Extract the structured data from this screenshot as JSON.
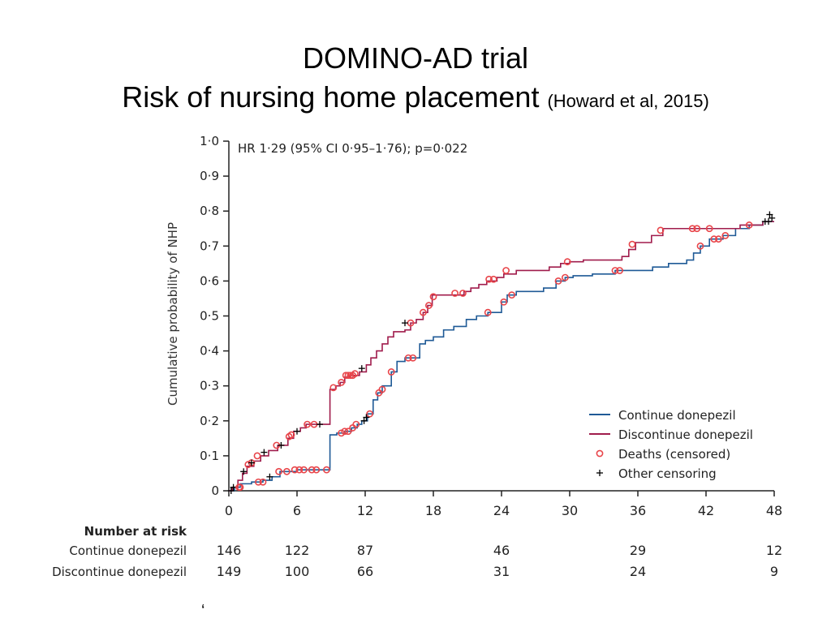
{
  "title_line1": "DOMINO-AD trial",
  "title_line2": "Risk of nursing home placement",
  "title_citation": "(Howard et al, 2015)",
  "chart_data": {
    "type": "line",
    "subtype": "kaplan-meier cumulative incidence (step)",
    "annotation": "HR 1·29 (95% CI 0·95–1·76); p=0·022",
    "ylabel": "Cumulative probability of NHP",
    "xlabel": "",
    "xlim": [
      0,
      48
    ],
    "ylim": [
      0,
      1.0
    ],
    "xticks": [
      "0",
      "6",
      "12",
      "18",
      "24",
      "30",
      "36",
      "42",
      "48"
    ],
    "xtick_values": [
      0,
      6,
      12,
      18,
      24,
      30,
      36,
      42,
      48
    ],
    "yticks": [
      "0",
      "0·1",
      "0·2",
      "0·3",
      "0·4",
      "0·5",
      "0·6",
      "0·7",
      "0·8",
      "0·9",
      "1·0"
    ],
    "ytick_values": [
      0,
      0.1,
      0.2,
      0.3,
      0.4,
      0.5,
      0.6,
      0.7,
      0.8,
      0.9,
      1.0
    ],
    "grid": false,
    "legend_position": "bottom-right",
    "legend_markers": {
      "deaths": "Deaths (censored)",
      "other": "Other censoring"
    },
    "colors": {
      "continue": "#1f5a96",
      "discontinue": "#a01c4c",
      "deaths_marker": "#e8454a",
      "other_marker": "#000000"
    },
    "series": [
      {
        "name": "Continue donepezil",
        "color_key": "continue",
        "steps": [
          [
            0,
            0
          ],
          [
            0.5,
            0.01
          ],
          [
            1.0,
            0.02
          ],
          [
            2.0,
            0.025
          ],
          [
            3.0,
            0.03
          ],
          [
            3.8,
            0.04
          ],
          [
            4.5,
            0.055
          ],
          [
            6.0,
            0.06
          ],
          [
            8.5,
            0.06
          ],
          [
            8.9,
            0.16
          ],
          [
            9.5,
            0.165
          ],
          [
            10.2,
            0.17
          ],
          [
            10.8,
            0.18
          ],
          [
            11.3,
            0.19
          ],
          [
            11.7,
            0.2
          ],
          [
            12.2,
            0.22
          ],
          [
            12.7,
            0.26
          ],
          [
            13.1,
            0.28
          ],
          [
            13.5,
            0.3
          ],
          [
            14.3,
            0.34
          ],
          [
            14.8,
            0.37
          ],
          [
            15.5,
            0.38
          ],
          [
            16.8,
            0.42
          ],
          [
            17.3,
            0.43
          ],
          [
            18.0,
            0.44
          ],
          [
            18.9,
            0.46
          ],
          [
            19.8,
            0.47
          ],
          [
            20.9,
            0.49
          ],
          [
            21.8,
            0.5
          ],
          [
            22.8,
            0.51
          ],
          [
            24.0,
            0.54
          ],
          [
            24.5,
            0.56
          ],
          [
            25.3,
            0.57
          ],
          [
            27.7,
            0.58
          ],
          [
            28.8,
            0.6
          ],
          [
            29.6,
            0.61
          ],
          [
            30.3,
            0.615
          ],
          [
            32.0,
            0.62
          ],
          [
            34.0,
            0.63
          ],
          [
            37.3,
            0.64
          ],
          [
            38.7,
            0.65
          ],
          [
            40.3,
            0.66
          ],
          [
            40.9,
            0.68
          ],
          [
            41.5,
            0.7
          ],
          [
            42.3,
            0.72
          ],
          [
            43.5,
            0.73
          ],
          [
            44.6,
            0.75
          ],
          [
            45.8,
            0.76
          ],
          [
            47.0,
            0.77
          ],
          [
            48,
            0.77
          ]
        ],
        "deaths_censored": [
          [
            1.0,
            0.01
          ],
          [
            2.6,
            0.025
          ],
          [
            3.0,
            0.025
          ],
          [
            4.4,
            0.055
          ],
          [
            5.1,
            0.055
          ],
          [
            5.8,
            0.06
          ],
          [
            6.2,
            0.06
          ],
          [
            6.6,
            0.06
          ],
          [
            7.3,
            0.06
          ],
          [
            7.7,
            0.06
          ],
          [
            8.6,
            0.06
          ],
          [
            9.9,
            0.165
          ],
          [
            10.2,
            0.17
          ],
          [
            10.5,
            0.17
          ],
          [
            10.9,
            0.18
          ],
          [
            11.2,
            0.19
          ],
          [
            12.4,
            0.22
          ],
          [
            13.2,
            0.28
          ],
          [
            13.5,
            0.29
          ],
          [
            14.3,
            0.34
          ],
          [
            15.8,
            0.38
          ],
          [
            16.2,
            0.38
          ],
          [
            22.8,
            0.51
          ],
          [
            24.2,
            0.54
          ],
          [
            24.9,
            0.56
          ],
          [
            29.0,
            0.6
          ],
          [
            29.6,
            0.61
          ],
          [
            34.0,
            0.63
          ],
          [
            34.4,
            0.63
          ],
          [
            41.5,
            0.7
          ],
          [
            42.7,
            0.72
          ],
          [
            43.1,
            0.72
          ],
          [
            43.7,
            0.73
          ]
        ],
        "other_censoring": [
          [
            0.2,
            0.0
          ],
          [
            0.4,
            0.01
          ],
          [
            3.6,
            0.04
          ],
          [
            11.9,
            0.2
          ],
          [
            12.1,
            0.21
          ],
          [
            47.2,
            0.77
          ],
          [
            47.5,
            0.77
          ],
          [
            47.8,
            0.78
          ]
        ]
      },
      {
        "name": "Discontinue donepezil",
        "color_key": "discontinue",
        "steps": [
          [
            0,
            0
          ],
          [
            0.3,
            0.01
          ],
          [
            0.8,
            0.03
          ],
          [
            1.2,
            0.05
          ],
          [
            1.6,
            0.07
          ],
          [
            2.2,
            0.085
          ],
          [
            2.8,
            0.1
          ],
          [
            3.5,
            0.115
          ],
          [
            4.3,
            0.13
          ],
          [
            5.2,
            0.15
          ],
          [
            5.7,
            0.17
          ],
          [
            6.3,
            0.18
          ],
          [
            6.8,
            0.19
          ],
          [
            8.3,
            0.19
          ],
          [
            8.9,
            0.29
          ],
          [
            9.4,
            0.3
          ],
          [
            9.8,
            0.31
          ],
          [
            10.2,
            0.325
          ],
          [
            10.6,
            0.33
          ],
          [
            11.5,
            0.34
          ],
          [
            12.1,
            0.36
          ],
          [
            12.5,
            0.38
          ],
          [
            13.0,
            0.4
          ],
          [
            13.5,
            0.42
          ],
          [
            14.0,
            0.44
          ],
          [
            14.5,
            0.455
          ],
          [
            15.5,
            0.46
          ],
          [
            16.0,
            0.48
          ],
          [
            16.5,
            0.49
          ],
          [
            17.1,
            0.51
          ],
          [
            17.5,
            0.53
          ],
          [
            17.9,
            0.56
          ],
          [
            20.7,
            0.57
          ],
          [
            21.3,
            0.58
          ],
          [
            22.0,
            0.59
          ],
          [
            22.7,
            0.6
          ],
          [
            23.6,
            0.61
          ],
          [
            24.2,
            0.62
          ],
          [
            25.3,
            0.63
          ],
          [
            28.2,
            0.64
          ],
          [
            29.2,
            0.65
          ],
          [
            30.0,
            0.655
          ],
          [
            31.2,
            0.66
          ],
          [
            34.6,
            0.67
          ],
          [
            35.2,
            0.69
          ],
          [
            35.8,
            0.71
          ],
          [
            37.2,
            0.73
          ],
          [
            38.2,
            0.75
          ],
          [
            45.0,
            0.76
          ],
          [
            47.0,
            0.77
          ],
          [
            48,
            0.77
          ]
        ],
        "deaths_censored": [
          [
            0.9,
            0.01
          ],
          [
            1.7,
            0.075
          ],
          [
            2.0,
            0.08
          ],
          [
            2.5,
            0.1
          ],
          [
            4.2,
            0.13
          ],
          [
            5.3,
            0.155
          ],
          [
            5.5,
            0.16
          ],
          [
            6.9,
            0.19
          ],
          [
            7.5,
            0.19
          ],
          [
            9.2,
            0.295
          ],
          [
            9.9,
            0.31
          ],
          [
            10.3,
            0.33
          ],
          [
            10.5,
            0.33
          ],
          [
            10.7,
            0.33
          ],
          [
            10.9,
            0.33
          ],
          [
            11.1,
            0.335
          ],
          [
            16.0,
            0.48
          ],
          [
            17.1,
            0.51
          ],
          [
            17.6,
            0.53
          ],
          [
            18.0,
            0.555
          ],
          [
            19.9,
            0.565
          ],
          [
            20.6,
            0.565
          ],
          [
            22.9,
            0.605
          ],
          [
            23.3,
            0.605
          ],
          [
            24.4,
            0.63
          ],
          [
            29.8,
            0.655
          ],
          [
            35.5,
            0.705
          ],
          [
            38.0,
            0.745
          ],
          [
            40.8,
            0.75
          ],
          [
            41.2,
            0.75
          ],
          [
            42.3,
            0.75
          ],
          [
            45.8,
            0.76
          ]
        ],
        "other_censoring": [
          [
            1.3,
            0.055
          ],
          [
            2.0,
            0.08
          ],
          [
            3.1,
            0.11
          ],
          [
            4.6,
            0.13
          ],
          [
            6.0,
            0.17
          ],
          [
            8.0,
            0.19
          ],
          [
            11.7,
            0.35
          ],
          [
            15.5,
            0.48
          ],
          [
            47.6,
            0.79
          ]
        ]
      }
    ],
    "risk_table": {
      "header": "Number at risk",
      "times": [
        0,
        6,
        12,
        24,
        36,
        48
      ],
      "rows": [
        {
          "label": "Continue donepezil",
          "values": [
            "146",
            "122",
            "87",
            "46",
            "29",
            "12"
          ]
        },
        {
          "label": "Discontinue donepezil",
          "values": [
            "149",
            "100",
            "66",
            "31",
            "24",
            "9"
          ]
        }
      ]
    }
  }
}
